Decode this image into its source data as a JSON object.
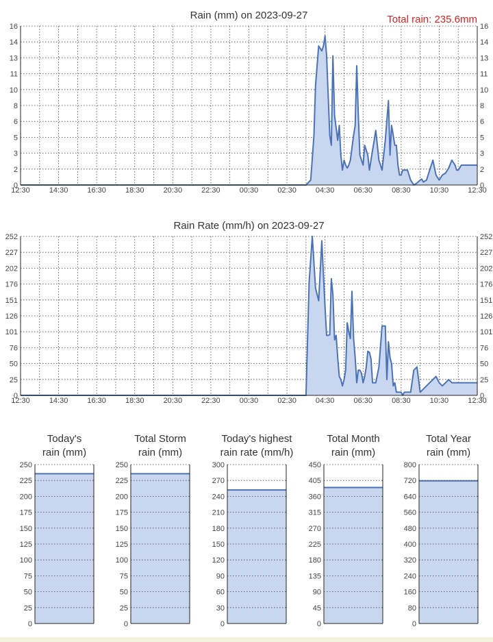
{
  "colors": {
    "line": "#4a72b5",
    "fill": "#c9d6ef",
    "grid": "#444444",
    "axis": "#222222",
    "total": "#e02020"
  },
  "chart_data": [
    {
      "type": "area",
      "title": "Rain (mm) on 2023-09-27",
      "annotation": "Total rain: 235.6mm",
      "y_ticks": [
        "0",
        "2",
        "3",
        "5",
        "6",
        "8",
        "10",
        "11",
        "13",
        "14",
        "16"
      ],
      "ylim": [
        0,
        16
      ],
      "x_ticks": [
        "12:30",
        "14:30",
        "16:30",
        "18:30",
        "20:30",
        "22:30",
        "00:30",
        "02:30",
        "04:30",
        "06:30",
        "08:30",
        "10:30",
        "12:30"
      ],
      "xlim": [
        0,
        1440
      ],
      "x": [
        0,
        900,
        915,
        925,
        930,
        940,
        950,
        955,
        960,
        965,
        975,
        980,
        985,
        990,
        1000,
        1005,
        1010,
        1015,
        1020,
        1025,
        1030,
        1035,
        1040,
        1050,
        1055,
        1060,
        1065,
        1070,
        1080,
        1085,
        1090,
        1095,
        1100,
        1105,
        1110,
        1115,
        1120,
        1130,
        1135,
        1140,
        1150,
        1160,
        1165,
        1170,
        1175,
        1180,
        1185,
        1190,
        1195,
        1200,
        1205,
        1210,
        1220,
        1230,
        1240,
        1250,
        1260,
        1265,
        1270,
        1280,
        1290,
        1300,
        1310,
        1320,
        1330,
        1340,
        1350,
        1360,
        1370,
        1375,
        1380,
        1390,
        1400,
        1410,
        1420,
        1425,
        1430,
        1440
      ],
      "y": [
        0,
        0,
        0.5,
        5,
        10,
        14,
        13.5,
        14,
        15,
        13,
        5,
        4,
        13,
        7,
        4.5,
        6,
        3,
        1.5,
        2.5,
        2,
        1.7,
        2,
        2.5,
        5,
        6,
        12,
        7,
        3,
        2,
        4,
        3.5,
        3,
        1.5,
        2.5,
        3.5,
        4.5,
        5.5,
        2.5,
        2,
        1.5,
        4.5,
        8.5,
        3,
        6,
        5,
        4,
        4,
        2,
        1,
        1,
        1.5,
        1.5,
        1.5,
        0.5,
        0,
        0.2,
        0.5,
        0.6,
        0.3,
        0.5,
        1.5,
        2.5,
        1,
        0.5,
        1,
        1.2,
        1.7,
        2.5,
        2,
        1.5,
        1.5,
        2,
        2,
        2,
        2,
        2,
        2,
        2
      ],
      "grid": true
    },
    {
      "type": "area",
      "title": "Rain Rate (mm/h) on 2023-09-27",
      "y_ticks": [
        "0",
        "25",
        "50",
        "76",
        "101",
        "126",
        "151",
        "176",
        "202",
        "227",
        "252"
      ],
      "ylim": [
        0,
        252
      ],
      "x_ticks": [
        "12:30",
        "14:30",
        "16:30",
        "18:30",
        "20:30",
        "22:30",
        "00:30",
        "02:30",
        "04:30",
        "06:30",
        "08:30",
        "10:30",
        "12:30"
      ],
      "xlim": [
        0,
        1440
      ],
      "x": [
        0,
        900,
        910,
        920,
        930,
        940,
        950,
        955,
        960,
        965,
        970,
        975,
        980,
        985,
        990,
        995,
        1000,
        1005,
        1010,
        1015,
        1020,
        1025,
        1030,
        1035,
        1040,
        1045,
        1050,
        1055,
        1060,
        1065,
        1070,
        1075,
        1080,
        1085,
        1090,
        1095,
        1100,
        1105,
        1110,
        1115,
        1120,
        1130,
        1140,
        1150,
        1155,
        1160,
        1165,
        1170,
        1175,
        1180,
        1185,
        1190,
        1200,
        1205,
        1210,
        1220,
        1225,
        1230,
        1240,
        1250,
        1260,
        1270,
        1280,
        1290,
        1300,
        1310,
        1315,
        1320,
        1330,
        1340,
        1350,
        1360,
        1370,
        1375,
        1380,
        1390,
        1400,
        1410,
        1420,
        1425,
        1430,
        1440
      ],
      "y": [
        0,
        0,
        180,
        252,
        170,
        150,
        245,
        190,
        140,
        95,
        95,
        96,
        185,
        160,
        88,
        95,
        60,
        30,
        25,
        15,
        25,
        40,
        115,
        100,
        90,
        165,
        90,
        60,
        20,
        40,
        40,
        35,
        20,
        30,
        45,
        70,
        68,
        58,
        20,
        20,
        20,
        45,
        110,
        110,
        25,
        85,
        60,
        50,
        15,
        20,
        5,
        5,
        5,
        0,
        5,
        5,
        5,
        5,
        40,
        45,
        5,
        10,
        15,
        20,
        25,
        30,
        25,
        20,
        15,
        20,
        25,
        20,
        20,
        20,
        20,
        20,
        20,
        20,
        20,
        20,
        20,
        20
      ],
      "grid": true
    },
    {
      "type": "bar",
      "title": [
        "Today's",
        "rain (mm)"
      ],
      "y_ticks": [
        "0",
        "25",
        "50",
        "75",
        "100",
        "125",
        "150",
        "175",
        "200",
        "225",
        "250"
      ],
      "ylim": [
        0,
        250
      ],
      "value": 235.6
    },
    {
      "type": "bar",
      "title": [
        "Total Storm",
        "rain (mm)"
      ],
      "y_ticks": [
        "0",
        "25",
        "50",
        "75",
        "100",
        "125",
        "150",
        "175",
        "200",
        "225",
        "250"
      ],
      "ylim": [
        0,
        250
      ],
      "value": 235.6
    },
    {
      "type": "bar",
      "title": [
        "Today's highest",
        "rain rate (mm/h)"
      ],
      "y_ticks": [
        "0",
        "30",
        "60",
        "90",
        "120",
        "150",
        "180",
        "210",
        "240",
        "270",
        "300"
      ],
      "ylim": [
        0,
        300
      ],
      "value": 252
    },
    {
      "type": "bar",
      "title": [
        "Total Month",
        "rain (mm)"
      ],
      "y_ticks": [
        "0",
        "45",
        "90",
        "135",
        "180",
        "225",
        "270",
        "315",
        "360",
        "405",
        "450"
      ],
      "ylim": [
        0,
        450
      ],
      "value": 385
    },
    {
      "type": "bar",
      "title": [
        "Total Year",
        "rain (mm)"
      ],
      "y_ticks": [
        "0",
        "80",
        "160",
        "240",
        "320",
        "400",
        "480",
        "560",
        "640",
        "720",
        "800"
      ],
      "ylim": [
        0,
        800
      ],
      "value": 718
    }
  ]
}
